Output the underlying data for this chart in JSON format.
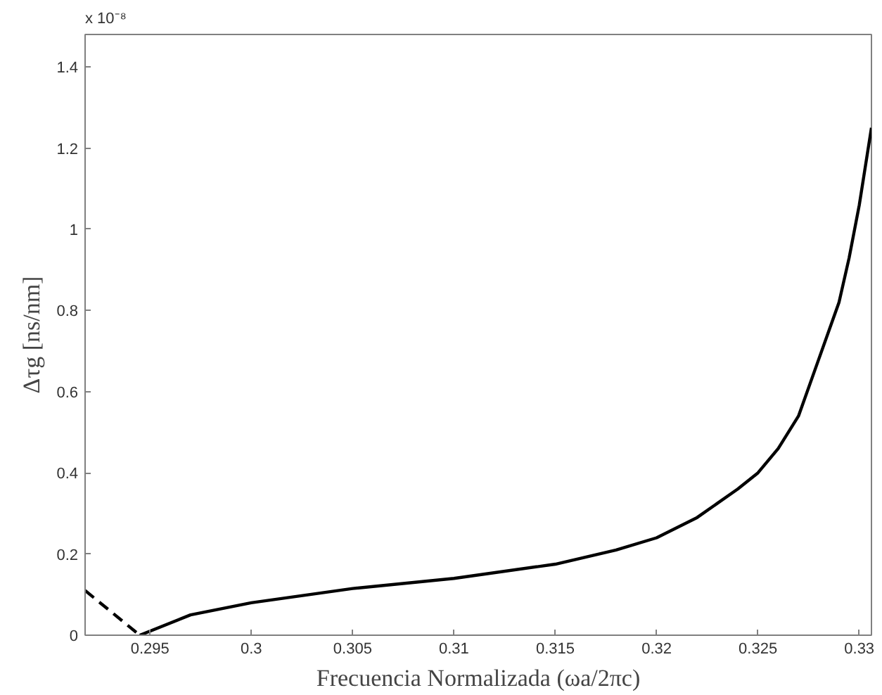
{
  "chart_data": {
    "type": "line",
    "xlabel": "Frecuencia Normalizada (ωa/2πc)",
    "ylabel": "Δτg [ns/nm]",
    "annotations": [
      "x 10⁻⁸"
    ],
    "xlim": [
      0.2918,
      0.3306
    ],
    "ylim": [
      0,
      1.48
    ],
    "xticks": [
      0.295,
      0.3,
      0.305,
      0.31,
      0.315,
      0.32,
      0.325,
      0.33
    ],
    "yticks": [
      0,
      0.2,
      0.4,
      0.6,
      0.8,
      1,
      1.2,
      1.4
    ],
    "grid": false,
    "marker": "none",
    "series": [
      {
        "color": "#000000",
        "line_style": "dashed",
        "x": [
          0.2918,
          0.2945
        ],
        "values": [
          0.11,
          0.0
        ]
      },
      {
        "color": "#000000",
        "line_style": "solid",
        "x": [
          0.2945,
          0.297,
          0.3,
          0.305,
          0.31,
          0.315,
          0.318,
          0.32,
          0.322,
          0.324,
          0.325,
          0.326,
          0.327,
          0.328,
          0.329,
          0.3295,
          0.33,
          0.3306
        ],
        "values": [
          0.0,
          0.05,
          0.08,
          0.115,
          0.14,
          0.175,
          0.21,
          0.24,
          0.29,
          0.36,
          0.4,
          0.46,
          0.54,
          0.68,
          0.82,
          0.93,
          1.06,
          1.25
        ]
      }
    ]
  }
}
